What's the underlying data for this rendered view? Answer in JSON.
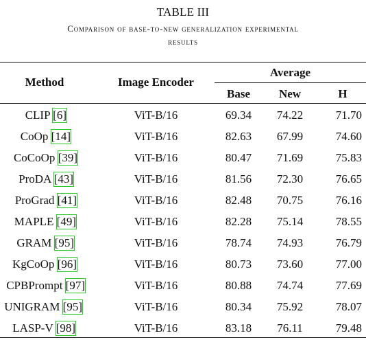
{
  "table": {
    "label": "TABLE III",
    "caption_line1": "Comparison of base-to-new generalization experimental",
    "caption_line2": "results",
    "headers": {
      "method": "Method",
      "encoder": "Image Encoder",
      "group": "Average",
      "base": "Base",
      "new": "New",
      "h": "H"
    },
    "rows": [
      {
        "name": "CLIP",
        "ref": "[6]",
        "encoder": "ViT-B/16",
        "base": "69.34",
        "new": "74.22",
        "h": "71.70"
      },
      {
        "name": "CoOp",
        "ref": "[14]",
        "encoder": "ViT-B/16",
        "base": "82.63",
        "new": "67.99",
        "h": "74.60"
      },
      {
        "name": "CoCoOp",
        "ref": "[39]",
        "encoder": "ViT-B/16",
        "base": "80.47",
        "new": "71.69",
        "h": "75.83"
      },
      {
        "name": "ProDA",
        "ref": "[43]",
        "encoder": "ViT-B/16",
        "base": "81.56",
        "new": "72.30",
        "h": "76.65"
      },
      {
        "name": "ProGrad",
        "ref": "[41]",
        "encoder": "ViT-B/16",
        "base": "82.48",
        "new": "70.75",
        "h": "76.16"
      },
      {
        "name": "MAPLE",
        "ref": "[49]",
        "encoder": "ViT-B/16",
        "base": "82.28",
        "new": "75.14",
        "h": "78.55"
      },
      {
        "name": "GRAM",
        "ref": "[95]",
        "encoder": "ViT-B/16",
        "base": "78.74",
        "new": "74.93",
        "h": "76.79"
      },
      {
        "name": "KgCoOp",
        "ref": "[96]",
        "encoder": "ViT-B/16",
        "base": "80.73",
        "new": "73.60",
        "h": "77.00"
      },
      {
        "name": "CPBPrompt",
        "ref": "[97]",
        "encoder": "ViT-B/16",
        "base": "80.88",
        "new": "74.74",
        "h": "77.69"
      },
      {
        "name": "UNIGRAM",
        "ref": "[95]",
        "encoder": "ViT-B/16",
        "base": "80.34",
        "new": "75.92",
        "h": "78.07"
      },
      {
        "name": "LASP-V",
        "ref": "[98]",
        "encoder": "ViT-B/16",
        "base": "83.18",
        "new": "76.11",
        "h": "79.48"
      }
    ]
  }
}
